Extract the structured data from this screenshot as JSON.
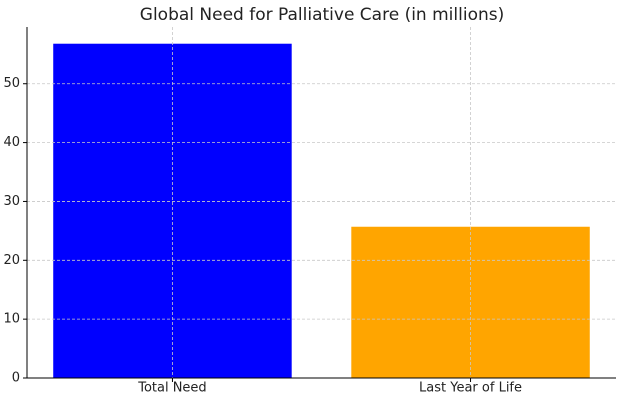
{
  "chart_data": {
    "type": "bar",
    "title": "Global Need for Palliative Care (in millions)",
    "categories": [
      "Total Need",
      "Last Year of Life"
    ],
    "values": [
      56.8,
      25.7
    ],
    "colors": [
      "#0000ff",
      "#ffa500"
    ],
    "ylim": [
      0,
      59.64
    ],
    "yticks": [
      0,
      10,
      20,
      30,
      40,
      50
    ],
    "grid": true
  }
}
